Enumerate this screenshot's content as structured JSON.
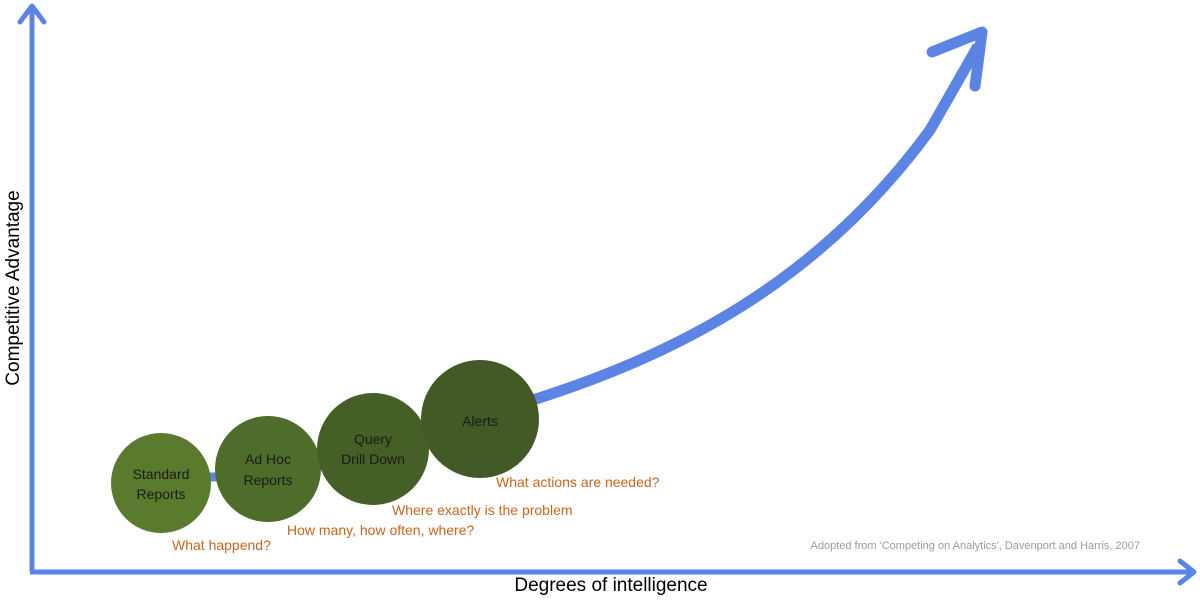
{
  "axes": {
    "x_label": "Degrees of intelligence",
    "y_label": "Competitive Advantage"
  },
  "stages": [
    {
      "line1": "Standard",
      "line2": "Reports",
      "question": "What happend?"
    },
    {
      "line1": "Ad Hoc",
      "line2": "Reports",
      "question": "How many, how often, where?"
    },
    {
      "line1": "Query",
      "line2": "Drill Down",
      "question": "Where exactly is the problem"
    },
    {
      "line1": "Alerts",
      "line2": "",
      "question": "What actions are needed?"
    }
  ],
  "credit": "Adopted from 'Competing on Analytics', Davenport and Harris, 2007",
  "colors": {
    "arrow_blue": "#5b84e4",
    "stage_green_1": "#5a7a2e",
    "stage_green_2": "#4e6c2a",
    "stage_green_3": "#465f27",
    "stage_green_4": "#435a26",
    "question_orange": "#c8651f"
  }
}
